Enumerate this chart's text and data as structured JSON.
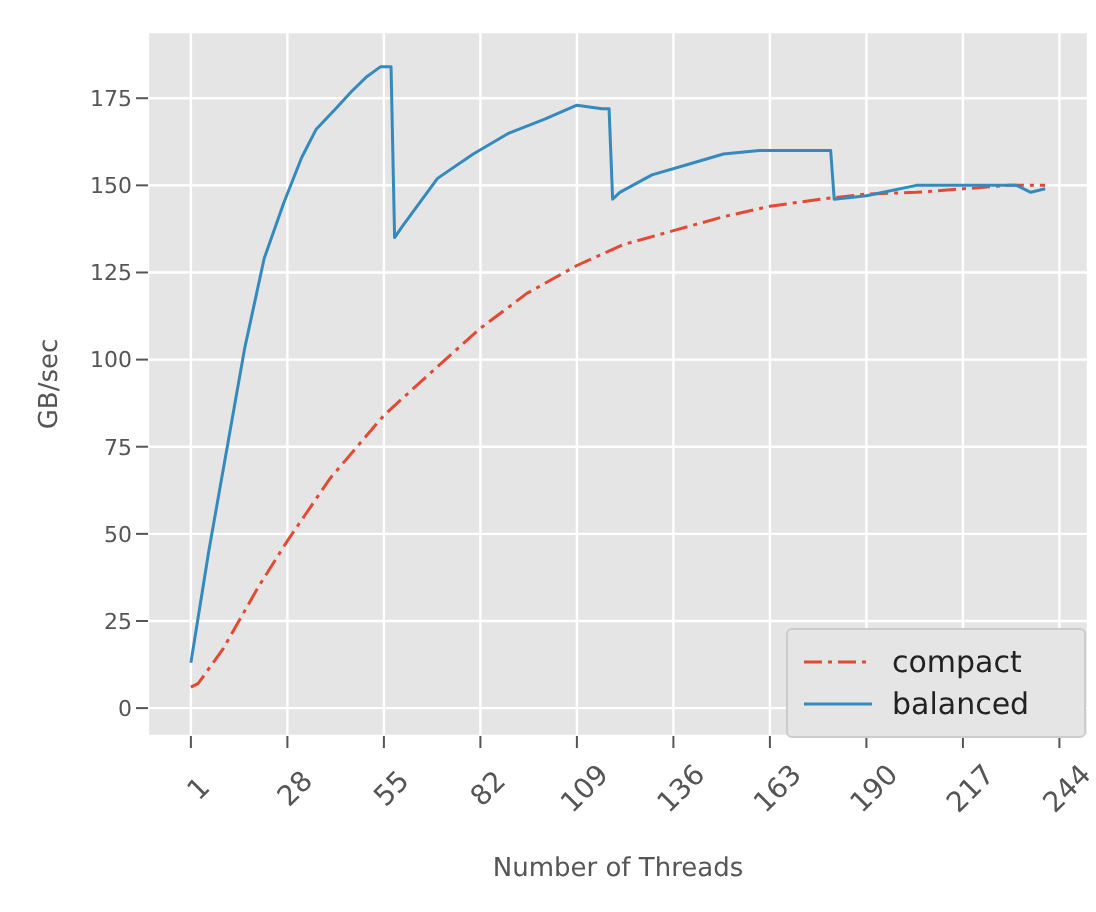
{
  "chart_data": {
    "type": "line",
    "xlabel": "Number of Threads",
    "ylabel": "GB/sec",
    "xlim": [
      -11,
      252
    ],
    "xticks": [
      1,
      28,
      55,
      82,
      109,
      136,
      163,
      190,
      217,
      244
    ],
    "ylim": [
      -8,
      194
    ],
    "yticks": [
      0,
      25,
      50,
      75,
      100,
      125,
      150,
      175
    ],
    "grid": true,
    "legend": "bottom right",
    "marker": "none",
    "series": [
      {
        "name": "compact",
        "color": "#e24a33",
        "line_style": "dashdot",
        "x": [
          1,
          3,
          10,
          20,
          28,
          40,
          55,
          70,
          82,
          95,
          109,
          122,
          136,
          150,
          163,
          177,
          190,
          204,
          217,
          230,
          240
        ],
        "values": [
          6,
          7,
          17,
          35,
          48,
          66,
          84,
          98,
          109,
          119,
          127,
          133,
          137,
          141,
          144,
          146,
          147.5,
          148,
          149,
          150,
          150
        ]
      },
      {
        "name": "balanced",
        "color": "#348abd",
        "line_style": "solid",
        "x": [
          1,
          6,
          11,
          16,
          21.5,
          27,
          32,
          36,
          41.5,
          46,
          50,
          54,
          57,
          58,
          60,
          70,
          80,
          90,
          100,
          109,
          116,
          118,
          119,
          121,
          130,
          140,
          150,
          160,
          170,
          180,
          181,
          190,
          204,
          215,
          225,
          232,
          236,
          240
        ],
        "values": [
          13,
          45,
          74,
          103,
          129,
          145,
          158,
          166,
          172,
          177,
          181,
          184,
          184,
          135,
          138,
          152,
          159,
          165,
          169,
          173,
          172,
          172,
          146,
          148,
          153,
          156,
          159,
          160,
          160,
          160,
          146,
          147,
          150,
          150,
          150,
          150,
          148,
          149
        ]
      }
    ]
  }
}
